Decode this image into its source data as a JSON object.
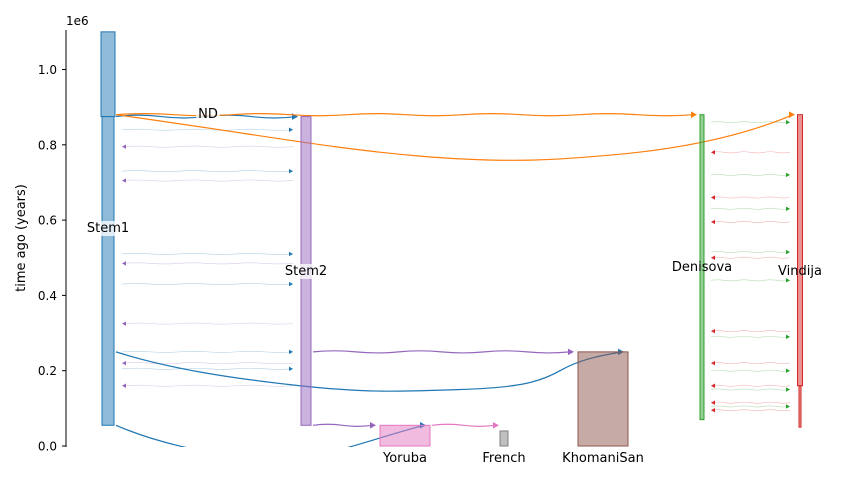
{
  "chart_data": {
    "type": "demography",
    "title": "",
    "xlabel": "",
    "ylabel": "time ago (years)",
    "y_multiplier_label": "1e6",
    "ylim": [
      0,
      1100000
    ],
    "y_ticks": [
      {
        "value": 0,
        "label": "0.0"
      },
      {
        "value": 200000,
        "label": "0.2"
      },
      {
        "value": 400000,
        "label": "0.4"
      },
      {
        "value": 600000,
        "label": "0.6"
      },
      {
        "value": 800000,
        "label": "0.8"
      },
      {
        "value": 1000000,
        "label": "1.0"
      }
    ],
    "colors": {
      "Stem1": "#1f77b4",
      "ND": "#ff7f0e",
      "Denisova": "#2ca02c",
      "Vindija": "#d62728",
      "Stem2": "#9467bd",
      "KhomaniSan": "#8c564b",
      "Yoruba": "#e377c2",
      "French": "#7f7f7f"
    },
    "demes": [
      {
        "name": "Stem1",
        "label": "Stem1",
        "epochs": [
          [
            1100000,
            875000,
            14
          ],
          [
            875000,
            55000,
            12
          ]
        ]
      },
      {
        "name": "Stem2",
        "label": "Stem2",
        "epochs": [
          [
            875000,
            55000,
            10
          ]
        ]
      },
      {
        "name": "ND",
        "label": "ND",
        "epochs": []
      },
      {
        "name": "Denisova",
        "label": "Denisova",
        "epochs": [
          [
            880000,
            70000,
            4
          ]
        ]
      },
      {
        "name": "Vindija",
        "label": "Vindija",
        "epochs": [
          [
            880000,
            160000,
            5
          ],
          [
            160000,
            50000,
            2
          ]
        ]
      },
      {
        "name": "KhomaniSan",
        "label": "KhomaniSan",
        "epochs": [
          [
            250000,
            0,
            50
          ]
        ]
      },
      {
        "name": "Yoruba",
        "label": "Yoruba",
        "epochs": [
          [
            55000,
            0,
            50
          ]
        ]
      },
      {
        "name": "French",
        "label": "French",
        "epochs": [
          [
            40000,
            0,
            8
          ]
        ]
      }
    ],
    "ancestry_lines": [
      {
        "from": "Stem1",
        "to": "Stem2",
        "time": 875000,
        "color": "#1f77b4"
      },
      {
        "from": "ND",
        "to": "Denisova",
        "time": 880000,
        "color": "#ff7f0e"
      },
      {
        "from": "ND",
        "to": "Vindija",
        "time": 880000,
        "color": "#ff7f0e"
      },
      {
        "from": "Stem2",
        "to": "KhomaniSan",
        "time": 250000,
        "color": "#9467bd"
      },
      {
        "from": "Stem1",
        "to": "KhomaniSan",
        "time": 250000,
        "color": "#1f77b4"
      },
      {
        "from": "Stem2",
        "to": "Yoruba",
        "time": 55000,
        "color": "#9467bd"
      },
      {
        "from": "Stem1",
        "to": "Yoruba",
        "time": 55000,
        "color": "#1f77b4"
      },
      {
        "from": "Yoruba",
        "to": "French",
        "time": 55000,
        "color": "#e377c2"
      }
    ],
    "migrations": [
      {
        "pair": "Stem1-Stem2",
        "times": [
          840000,
          795000,
          730000,
          705000,
          510000,
          485000,
          430000,
          325000,
          250000,
          220000,
          205000,
          160000
        ]
      },
      {
        "pair": "Denisova-Vindija",
        "times": [
          860000,
          780000,
          720000,
          660000,
          630000,
          595000,
          515000,
          500000,
          440000,
          305000,
          290000,
          220000,
          200000,
          160000,
          150000,
          115000,
          105000,
          95000
        ]
      }
    ]
  }
}
